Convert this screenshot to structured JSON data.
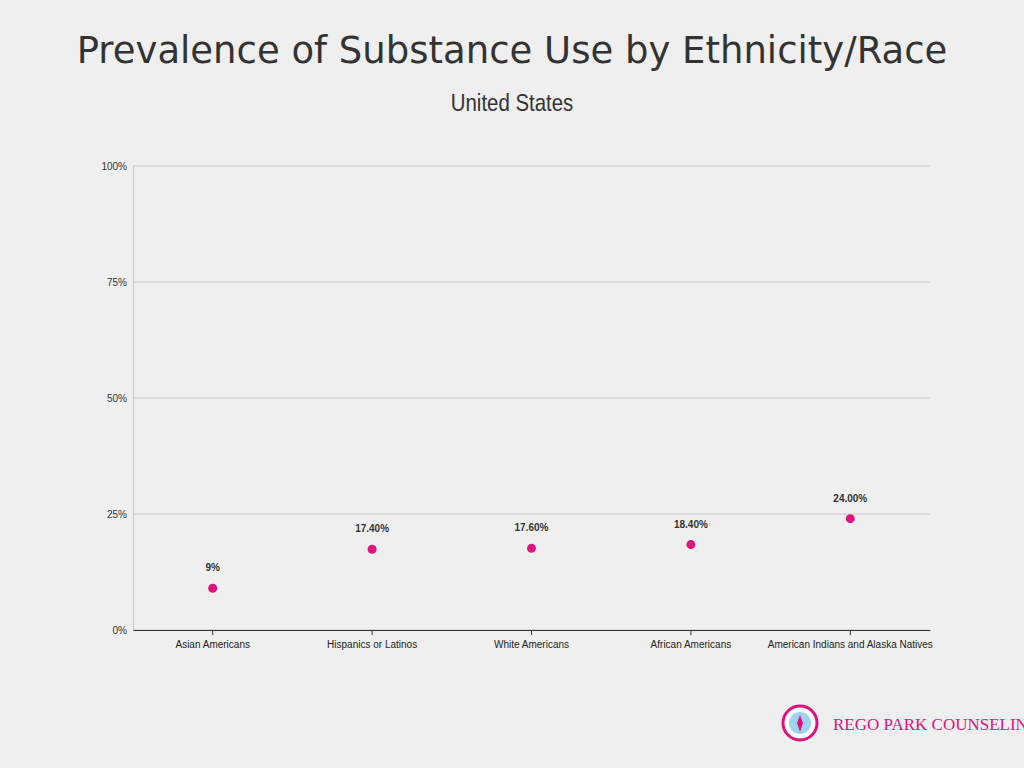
{
  "chart_data": {
    "type": "scatter",
    "title": "Prevalence of Substance Use by Ethnicity/Race",
    "subtitle": "United States",
    "categories": [
      "Asian Americans",
      "Hispanics or Latinos",
      "White Americans",
      "African Americans",
      "American Indians and Alaska Natives"
    ],
    "values": [
      9,
      17.4,
      17.6,
      18.4,
      24
    ],
    "value_labels": [
      "9%",
      "17.40%",
      "17.60%",
      "18.40%",
      "24.00%"
    ],
    "color": "#e0127e",
    "marker": "circle",
    "ylim": [
      0,
      100
    ],
    "yticks": [
      {
        "value": 0,
        "label": "0%"
      },
      {
        "value": 25,
        "label": "25%"
      },
      {
        "value": 50,
        "label": "50%"
      },
      {
        "value": 75,
        "label": "75%"
      },
      {
        "value": 100,
        "label": "100%"
      }
    ],
    "grid": true,
    "data_labels": true,
    "annotations": [
      "REGO PARK COUNSELING"
    ]
  }
}
